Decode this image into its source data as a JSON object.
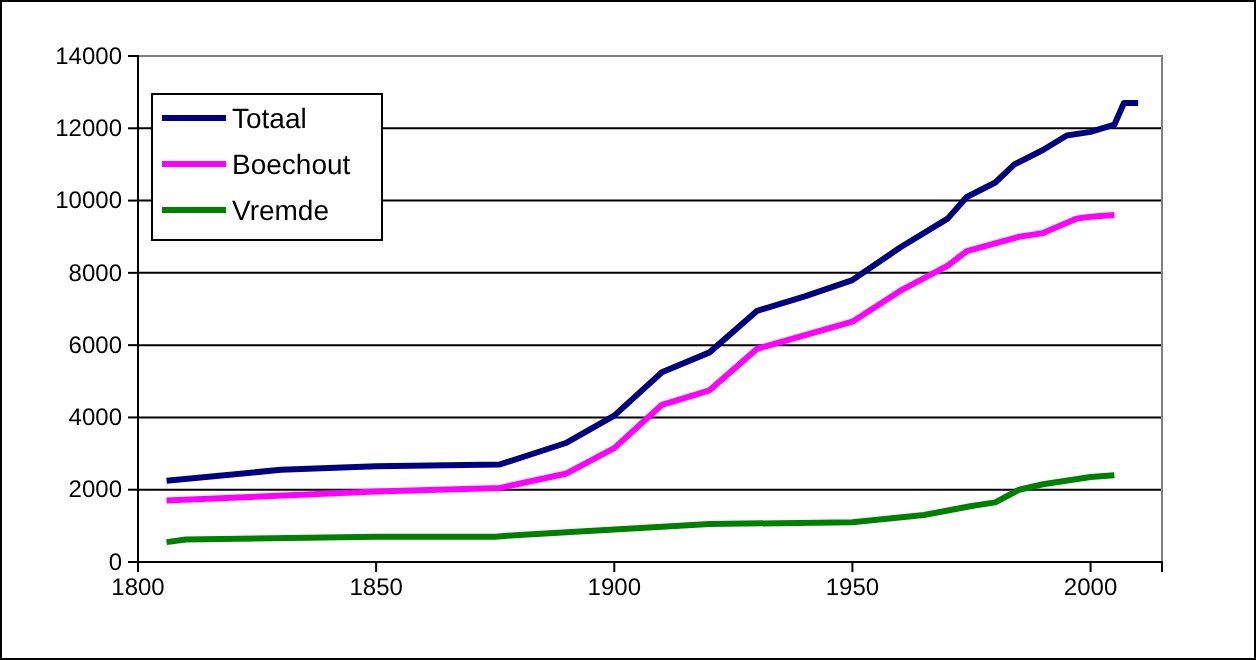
{
  "chart_data": {
    "type": "line",
    "xlim": [
      1800,
      2015
    ],
    "xticks": [
      1800,
      1850,
      1900,
      1950,
      2000
    ],
    "ylim": [
      0,
      14000
    ],
    "yticks": [
      0,
      2000,
      4000,
      6000,
      8000,
      10000,
      12000,
      14000
    ],
    "grid": "y",
    "legend": "top left",
    "marker": "none",
    "line_style": "solid",
    "series": [
      {
        "name": "Totaal",
        "color": "#000080",
        "x": [
          1806,
          1830,
          1850,
          1876,
          1890,
          1900,
          1910,
          1920,
          1930,
          1940,
          1950,
          1960,
          1970,
          1974,
          1980,
          1984,
          1990,
          1995,
          2000,
          2005,
          2007,
          2010
        ],
        "values": [
          2250,
          2550,
          2650,
          2700,
          3300,
          4050,
          5250,
          5800,
          6950,
          7350,
          7800,
          8700,
          9500,
          10100,
          10500,
          11000,
          11400,
          11800,
          11900,
          12100,
          12700,
          12700
        ]
      },
      {
        "name": "Boechout",
        "color": "#ff00ff",
        "x": [
          1806,
          1850,
          1876,
          1890,
          1900,
          1910,
          1920,
          1930,
          1950,
          1960,
          1970,
          1974,
          1985,
          1990,
          1997,
          2000,
          2005
        ],
        "values": [
          1700,
          1950,
          2050,
          2450,
          3150,
          4350,
          4750,
          5900,
          6650,
          7500,
          8200,
          8600,
          9000,
          9100,
          9500,
          9550,
          9600
        ]
      },
      {
        "name": "Vremde",
        "color": "#008000",
        "x": [
          1806,
          1810,
          1850,
          1875,
          1880,
          1900,
          1920,
          1950,
          1965,
          1975,
          1980,
          1985,
          1990,
          2000,
          2005
        ],
        "values": [
          550,
          620,
          700,
          700,
          750,
          900,
          1050,
          1100,
          1300,
          1550,
          1650,
          2000,
          2150,
          2350,
          2400
        ]
      }
    ]
  }
}
